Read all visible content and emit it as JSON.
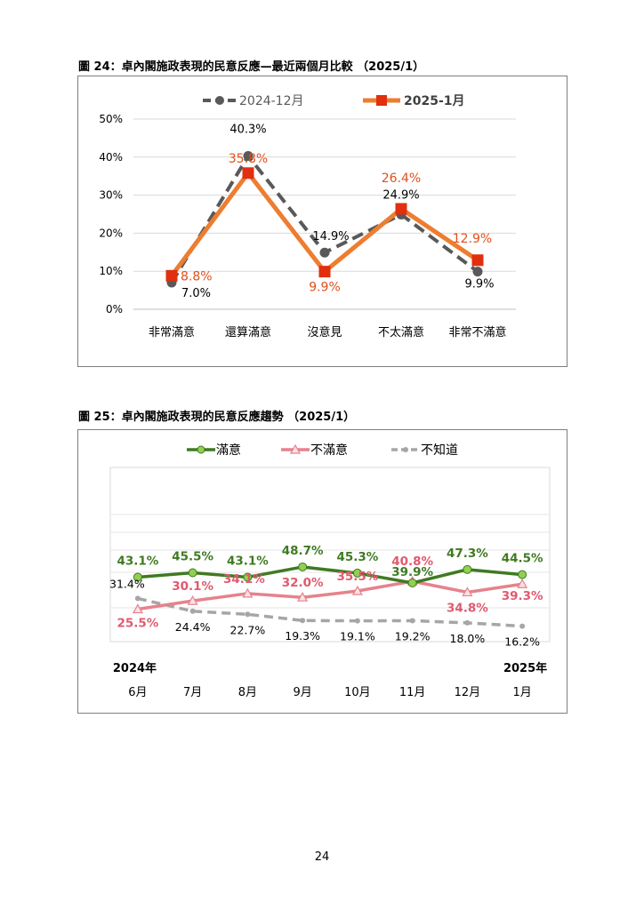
{
  "figure1": {
    "title": "圖 24：卓內閣施政表現的民意反應—最近兩個月比較 （2025/1）",
    "colors": {
      "prev": "#595959",
      "curr": "#ed7d31",
      "curr_marker": "#e0300f",
      "curr_label": "#e0501a",
      "grid": "#d9d9d9"
    },
    "chart_data": {
      "type": "line",
      "categories": [
        "非常滿意",
        "還算滿意",
        "沒意見",
        "不太滿意",
        "非常不滿意"
      ],
      "series": [
        {
          "name": "2024-12月",
          "values": [
            7.0,
            40.3,
            14.9,
            24.9,
            9.9
          ],
          "labels": [
            "7.0%",
            "40.3%",
            "14.9%",
            "24.9%",
            "9.9%"
          ]
        },
        {
          "name": "2025-1月",
          "values": [
            8.8,
            35.8,
            9.9,
            26.4,
            12.9
          ],
          "labels": [
            "8.8%",
            "35.8%",
            "9.9%",
            "26.4%",
            "12.9%"
          ]
        }
      ],
      "ylim": [
        0,
        50
      ],
      "yticks": [
        "0%",
        "10%",
        "20%",
        "30%",
        "40%",
        "50%"
      ],
      "grid": true,
      "legend": "top"
    }
  },
  "figure2": {
    "title": "圖 25：卓內閣施政表現的民意反應趨勢 （2025/1）",
    "colors": {
      "satisfied": "#3f7a22",
      "satisfied_marker": "#92d050",
      "dissatisfied": "#e6828c",
      "dissatisfied_label": "#e05a6e",
      "unknown": "#a6a6a6",
      "grid": "#e6e6e6"
    },
    "chart_data": {
      "type": "line",
      "categories": [
        "6月",
        "7月",
        "8月",
        "9月",
        "10月",
        "11月",
        "12月",
        "1月"
      ],
      "year_labels": [
        "2024年",
        "2025年"
      ],
      "series": [
        {
          "name": "滿意",
          "values": [
            43.1,
            45.5,
            43.1,
            48.7,
            45.3,
            39.9,
            47.3,
            44.5
          ],
          "labels": [
            "43.1%",
            "45.5%",
            "43.1%",
            "48.7%",
            "45.3%",
            "39.9%",
            "47.3%",
            "44.5%"
          ]
        },
        {
          "name": "不滿意",
          "values": [
            25.5,
            30.1,
            34.1,
            32.0,
            35.5,
            40.8,
            34.8,
            39.3
          ],
          "labels": [
            "25.5%",
            "30.1%",
            "34.1%",
            "32.0%",
            "35.5%",
            "40.8%",
            "34.8%",
            "39.3%"
          ]
        },
        {
          "name": "不知道",
          "values": [
            31.4,
            24.4,
            22.7,
            19.3,
            19.1,
            19.2,
            18.0,
            16.2
          ],
          "labels": [
            "31.4%",
            "24.4%",
            "22.7%",
            "19.3%",
            "19.1%",
            "19.2%",
            "18.0%",
            "16.2%"
          ]
        }
      ],
      "grid": true,
      "legend": "top"
    }
  },
  "page_number": "24"
}
